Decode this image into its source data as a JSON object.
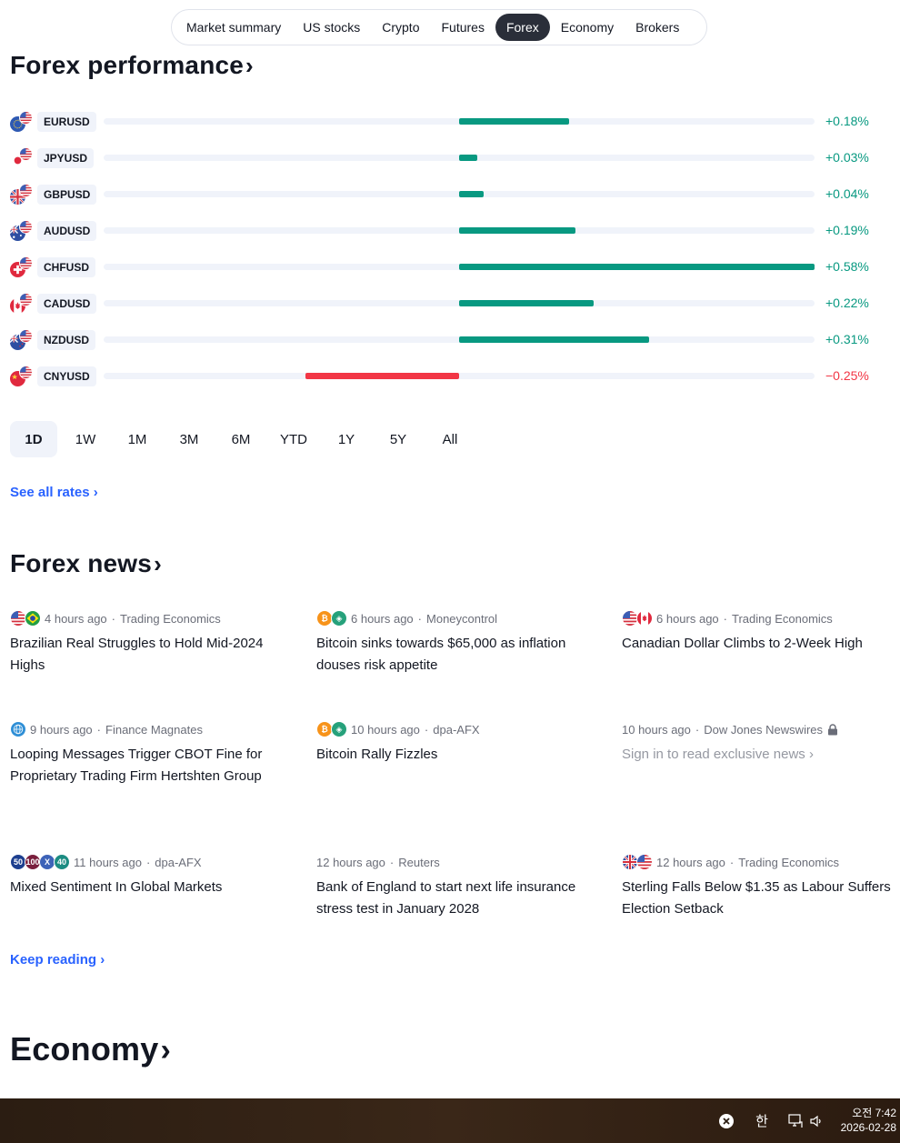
{
  "tabs": [
    "Market summary",
    "US stocks",
    "Crypto",
    "Futures",
    "Forex",
    "Economy",
    "Brokers"
  ],
  "active_tab": "Forex",
  "forex_performance": {
    "title": "Forex performance",
    "chev": "›",
    "rows": [
      {
        "pair": "EURUSD",
        "change": 0.18,
        "label": "+0.18%",
        "base_flag": "eu-flag-icon"
      },
      {
        "pair": "JPYUSD",
        "change": 0.03,
        "label": "+0.03%",
        "base_flag": "jp-flag-icon"
      },
      {
        "pair": "GBPUSD",
        "change": 0.04,
        "label": "+0.04%",
        "base_flag": "gb-flag-icon"
      },
      {
        "pair": "AUDUSD",
        "change": 0.19,
        "label": "+0.19%",
        "base_flag": "au-flag-icon"
      },
      {
        "pair": "CHFUSD",
        "change": 0.58,
        "label": "+0.58%",
        "base_flag": "ch-flag-icon"
      },
      {
        "pair": "CADUSD",
        "change": 0.22,
        "label": "+0.22%",
        "base_flag": "ca-flag-icon"
      },
      {
        "pair": "NZDUSD",
        "change": 0.31,
        "label": "+0.31%",
        "base_flag": "nz-flag-icon"
      },
      {
        "pair": "CNYUSD",
        "change": -0.25,
        "label": "−0.25%",
        "base_flag": "cn-flag-icon"
      }
    ],
    "ranges": [
      "1D",
      "1W",
      "1M",
      "3M",
      "6M",
      "YTD",
      "1Y",
      "5Y",
      "All"
    ],
    "active_range": "1D",
    "see_all": "See all rates ›"
  },
  "forex_news": {
    "title": "Forex news",
    "chev": "›",
    "items": [
      {
        "time": "4 hours ago",
        "source": "Trading Economics",
        "title": "Brazilian Real Struggles to Hold Mid-2024 Highs",
        "icons": [
          "us-flag-icon",
          "br-flag-icon"
        ]
      },
      {
        "time": "6 hours ago",
        "source": "Moneycontrol",
        "title": "Bitcoin sinks towards $65,000 as inflation douses risk appetite",
        "icons": [
          "bitcoin-icon",
          "tether-icon"
        ]
      },
      {
        "time": "6 hours ago",
        "source": "Trading Economics",
        "title": "Canadian Dollar Climbs to 2-Week High",
        "icons": [
          "us-flag-icon",
          "ca-flag-icon"
        ]
      },
      {
        "time": "9 hours ago",
        "source": "Finance Magnates",
        "title": "Looping Messages Trigger CBOT Fine for Proprietary Trading Firm Hertshten Group",
        "icons": [
          "globe-icon"
        ]
      },
      {
        "time": "10 hours ago",
        "source": "dpa-AFX",
        "title": "Bitcoin Rally Fizzles",
        "icons": [
          "bitcoin-icon",
          "tether-icon"
        ]
      },
      {
        "time": "10 hours ago",
        "source": "Dow Jones Newswires",
        "title": "Sign in to read exclusive news ›",
        "icons": [],
        "locked": true
      },
      {
        "time": "11 hours ago",
        "source": "dpa-AFX",
        "title": "Mixed Sentiment In Global Markets",
        "icons": [
          "index-50-icon",
          "index-100-icon",
          "xrp-icon",
          "index-40-icon"
        ]
      },
      {
        "time": "12 hours ago",
        "source": "Reuters",
        "title": "Bank of England to start next life insurance stress test in January 2028",
        "icons": []
      },
      {
        "time": "12 hours ago",
        "source": "Trading Economics",
        "title": "Sterling Falls Below $1.35 as Labour Suffers Election Setback",
        "icons": [
          "gb-flag-icon",
          "us-flag-icon"
        ]
      }
    ],
    "keep_reading": "Keep reading ›"
  },
  "economy": {
    "title": "Economy",
    "chev": "›"
  },
  "icon_labels": {
    "index_50": "50",
    "index_100": "100",
    "xrp": "X",
    "index_40": "40",
    "bitcoin": "₿",
    "tether": "◈"
  },
  "taskbar": {
    "ime": "한",
    "time": "오전 7:42",
    "date": "2026-02-28"
  },
  "colors": {
    "positive": "#089981",
    "negative": "#f23645",
    "link": "#2962ff"
  }
}
